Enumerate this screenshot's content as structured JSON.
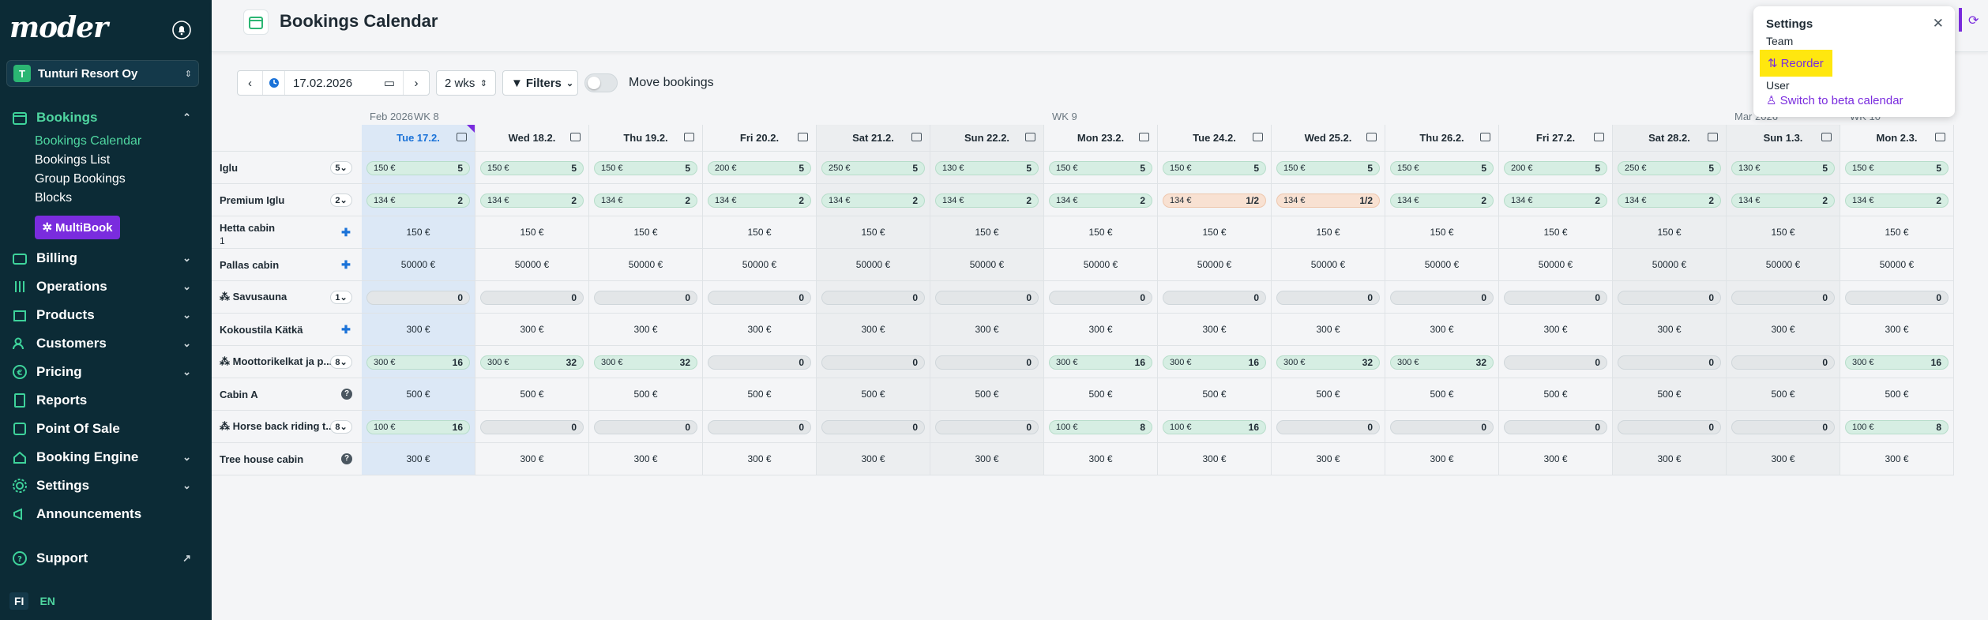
{
  "sidebar": {
    "logo": "moder",
    "org": {
      "initial": "T",
      "name": "Tunturi Resort Oy"
    },
    "nav": [
      {
        "label": "Bookings",
        "icon": "calendar-icon",
        "expanded": true
      },
      {
        "label": "Billing",
        "icon": "wallet-icon"
      },
      {
        "label": "Operations",
        "icon": "sliders-icon"
      },
      {
        "label": "Products",
        "icon": "box-icon"
      },
      {
        "label": "Customers",
        "icon": "users-icon"
      },
      {
        "label": "Pricing",
        "icon": "euro-icon"
      },
      {
        "label": "Reports",
        "icon": "report-icon"
      },
      {
        "label": "Point Of Sale",
        "icon": "pos-icon"
      },
      {
        "label": "Booking Engine",
        "icon": "engine-icon"
      },
      {
        "label": "Settings",
        "icon": "gear-icon"
      },
      {
        "label": "Announcements",
        "icon": "megaphone-icon"
      }
    ],
    "bookings_sub": [
      "Bookings Calendar",
      "Bookings List",
      "Group Bookings",
      "Blocks"
    ],
    "multibook": "MultiBook",
    "support": "Support",
    "lang": {
      "fi": "FI",
      "en": "EN"
    }
  },
  "header": {
    "title": "Bookings Calendar"
  },
  "toolbar": {
    "date": "17.02.2026",
    "range": "2 wks",
    "filters": "Filters",
    "move_bookings": "Move bookings"
  },
  "calendar": {
    "month_labels": [
      "Feb 2026",
      "Mar 2026"
    ],
    "week_labels": [
      "WK 8",
      "WK 9",
      "WK 10"
    ],
    "days": [
      {
        "label": "Tue 17.2.",
        "today": true,
        "weekend": false
      },
      {
        "label": "Wed 18.2.",
        "today": false,
        "weekend": false
      },
      {
        "label": "Thu 19.2.",
        "today": false,
        "weekend": false
      },
      {
        "label": "Fri 20.2.",
        "today": false,
        "weekend": false
      },
      {
        "label": "Sat 21.2.",
        "today": false,
        "weekend": true
      },
      {
        "label": "Sun 22.2.",
        "today": false,
        "weekend": true
      },
      {
        "label": "Mon 23.2.",
        "today": false,
        "weekend": false
      },
      {
        "label": "Tue 24.2.",
        "today": false,
        "weekend": false
      },
      {
        "label": "Wed 25.2.",
        "today": false,
        "weekend": false
      },
      {
        "label": "Thu 26.2.",
        "today": false,
        "weekend": false
      },
      {
        "label": "Fri 27.2.",
        "today": false,
        "weekend": false
      },
      {
        "label": "Sat 28.2.",
        "today": false,
        "weekend": true
      },
      {
        "label": "Sun 1.3.",
        "today": false,
        "weekend": true
      },
      {
        "label": "Mon 2.3.",
        "today": false,
        "weekend": false
      }
    ],
    "rooms": [
      {
        "name": "Iglu",
        "badge": "5",
        "type": "pill",
        "cells": [
          [
            "150 €",
            "5",
            "green"
          ],
          [
            "150 €",
            "5",
            "green"
          ],
          [
            "150 €",
            "5",
            "green"
          ],
          [
            "200 €",
            "5",
            "green"
          ],
          [
            "250 €",
            "5",
            "green"
          ],
          [
            "130 €",
            "5",
            "green"
          ],
          [
            "150 €",
            "5",
            "green"
          ],
          [
            "150 €",
            "5",
            "green"
          ],
          [
            "150 €",
            "5",
            "green"
          ],
          [
            "150 €",
            "5",
            "green"
          ],
          [
            "200 €",
            "5",
            "green"
          ],
          [
            "250 €",
            "5",
            "green"
          ],
          [
            "130 €",
            "5",
            "green"
          ],
          [
            "150 €",
            "5",
            "green"
          ]
        ]
      },
      {
        "name": "Premium Iglu",
        "badge": "2",
        "type": "pill",
        "cells": [
          [
            "134 €",
            "2",
            "green"
          ],
          [
            "134 €",
            "2",
            "green"
          ],
          [
            "134 €",
            "2",
            "green"
          ],
          [
            "134 €",
            "2",
            "green"
          ],
          [
            "134 €",
            "2",
            "green"
          ],
          [
            "134 €",
            "2",
            "green"
          ],
          [
            "134 €",
            "2",
            "green"
          ],
          [
            "134 €",
            "1/2",
            "orange"
          ],
          [
            "134 €",
            "1/2",
            "orange"
          ],
          [
            "134 €",
            "2",
            "green"
          ],
          [
            "134 €",
            "2",
            "green"
          ],
          [
            "134 €",
            "2",
            "green"
          ],
          [
            "134 €",
            "2",
            "green"
          ],
          [
            "134 €",
            "2",
            "green"
          ]
        ]
      },
      {
        "name": "Hetta cabin",
        "sub": "1",
        "marker": "puzzle",
        "type": "text",
        "cells": [
          "150 €",
          "150 €",
          "150 €",
          "150 €",
          "150 €",
          "150 €",
          "150 €",
          "150 €",
          "150 €",
          "150 €",
          "150 €",
          "150 €",
          "150 €",
          "150 €"
        ]
      },
      {
        "name": "Pallas cabin",
        "marker": "puzzle",
        "type": "text",
        "cells": [
          "50000 €",
          "50000 €",
          "50000 €",
          "50000 €",
          "50000 €",
          "50000 €",
          "50000 €",
          "50000 €",
          "50000 €",
          "50000 €",
          "50000 €",
          "50000 €",
          "50000 €",
          "50000 €"
        ]
      },
      {
        "name": "⁂ Savusauna",
        "badge": "1",
        "type": "pill",
        "cells": [
          [
            "",
            "0",
            "gray"
          ],
          [
            "",
            "0",
            "gray"
          ],
          [
            "",
            "0",
            "gray"
          ],
          [
            "",
            "0",
            "gray"
          ],
          [
            "",
            "0",
            "gray"
          ],
          [
            "",
            "0",
            "gray"
          ],
          [
            "",
            "0",
            "gray"
          ],
          [
            "",
            "0",
            "gray"
          ],
          [
            "",
            "0",
            "gray"
          ],
          [
            "",
            "0",
            "gray"
          ],
          [
            "",
            "0",
            "gray"
          ],
          [
            "",
            "0",
            "gray"
          ],
          [
            "",
            "0",
            "gray"
          ],
          [
            "",
            "0",
            "gray"
          ]
        ]
      },
      {
        "name": "Kokoustila Kätkä",
        "marker": "puzzle",
        "type": "text",
        "cells": [
          "300 €",
          "300 €",
          "300 €",
          "300 €",
          "300 €",
          "300 €",
          "300 €",
          "300 €",
          "300 €",
          "300 €",
          "300 €",
          "300 €",
          "300 €",
          "300 €"
        ]
      },
      {
        "name": "⁂ Moottorikelkat ja p...",
        "badge": "8",
        "type": "pill",
        "cells": [
          [
            "300 €",
            "16",
            "green"
          ],
          [
            "300 €",
            "32",
            "green"
          ],
          [
            "300 €",
            "32",
            "green"
          ],
          [
            "",
            "0",
            "gray"
          ],
          [
            "",
            "0",
            "gray"
          ],
          [
            "",
            "0",
            "gray"
          ],
          [
            "300 €",
            "16",
            "green"
          ],
          [
            "300 €",
            "16",
            "green"
          ],
          [
            "300 €",
            "32",
            "green"
          ],
          [
            "300 €",
            "32",
            "green"
          ],
          [
            "",
            "0",
            "gray"
          ],
          [
            "",
            "0",
            "gray"
          ],
          [
            "",
            "0",
            "gray"
          ],
          [
            "300 €",
            "16",
            "green"
          ]
        ]
      },
      {
        "name": "Cabin A",
        "marker": "info",
        "type": "text",
        "cells": [
          "500 €",
          "500 €",
          "500 €",
          "500 €",
          "500 €",
          "500 €",
          "500 €",
          "500 €",
          "500 €",
          "500 €",
          "500 €",
          "500 €",
          "500 €",
          "500 €"
        ]
      },
      {
        "name": "⁂ Horse back riding t...",
        "badge": "8",
        "type": "pill",
        "cells": [
          [
            "100 €",
            "16",
            "green"
          ],
          [
            "",
            "0",
            "gray"
          ],
          [
            "",
            "0",
            "gray"
          ],
          [
            "",
            "0",
            "gray"
          ],
          [
            "",
            "0",
            "gray"
          ],
          [
            "",
            "0",
            "gray"
          ],
          [
            "100 €",
            "8",
            "green"
          ],
          [
            "100 €",
            "16",
            "green"
          ],
          [
            "",
            "0",
            "gray"
          ],
          [
            "",
            "0",
            "gray"
          ],
          [
            "",
            "0",
            "gray"
          ],
          [
            "",
            "0",
            "gray"
          ],
          [
            "",
            "0",
            "gray"
          ],
          [
            "100 €",
            "8",
            "green"
          ]
        ]
      },
      {
        "name": "Tree house cabin",
        "marker": "info",
        "type": "text",
        "cells": [
          "300 €",
          "300 €",
          "300 €",
          "300 €",
          "300 €",
          "300 €",
          "300 €",
          "300 €",
          "300 €",
          "300 €",
          "300 €",
          "300 €",
          "300 €",
          "300 €"
        ]
      }
    ]
  },
  "popup": {
    "title": "Settings",
    "team_label": "Team",
    "reorder": "Reorder",
    "user_label": "User",
    "beta": "Switch to beta calendar"
  }
}
